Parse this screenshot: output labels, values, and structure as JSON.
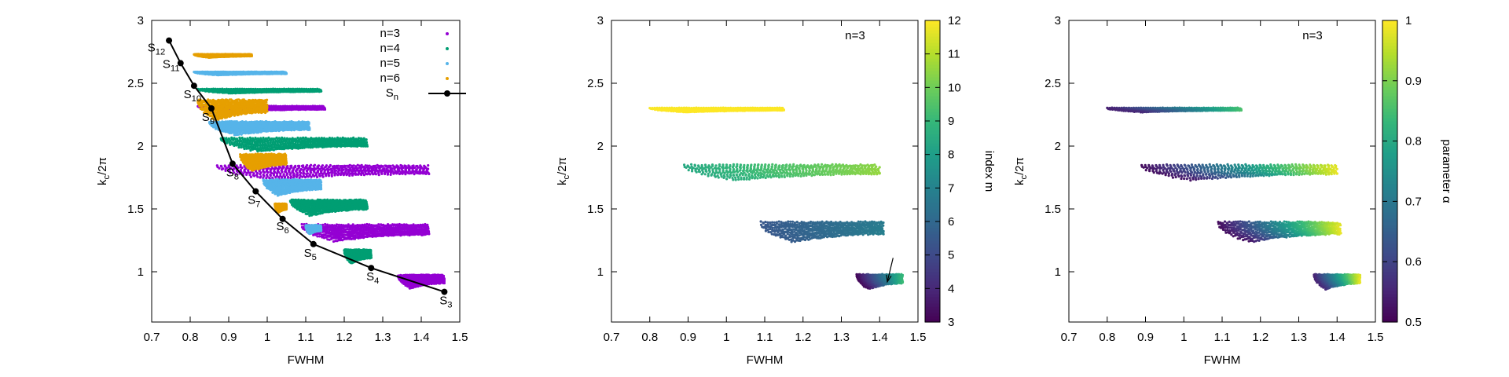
{
  "chart_data": [
    {
      "type": "scatter",
      "xlabel": "FWHM",
      "ylabel": "kc/2π",
      "xlim": [
        0.7,
        1.5
      ],
      "ylim": [
        0.6,
        3.0
      ],
      "xticks": [
        "0.7",
        "0.8",
        "0.9",
        "1",
        "1.1",
        "1.2",
        "1.3",
        "1.4",
        "1.5"
      ],
      "yticks": [
        "1",
        "1.5",
        "2",
        "2.5",
        "3"
      ],
      "legend_position": "top-right",
      "series": [
        {
          "name": "n=3",
          "color": "#9400d3",
          "bands": [
            {
              "k": 2.3,
              "x0": 0.82,
              "x1": 1.15,
              "w": 0.05
            },
            {
              "k": 1.8,
              "x0": 0.87,
              "x1": 1.42,
              "w": 0.13
            },
            {
              "k": 1.32,
              "x0": 1.09,
              "x1": 1.42,
              "w": 0.15
            },
            {
              "k": 0.93,
              "x0": 1.34,
              "x1": 1.46,
              "w": 0.12
            }
          ]
        },
        {
          "name": "n=4",
          "color": "#009e73",
          "bands": [
            {
              "k": 2.44,
              "x0": 0.82,
              "x1": 1.14,
              "w": 0.04
            },
            {
              "k": 2.02,
              "x0": 0.88,
              "x1": 1.26,
              "w": 0.12
            },
            {
              "k": 1.52,
              "x0": 1.06,
              "x1": 1.26,
              "w": 0.14
            },
            {
              "k": 1.13,
              "x0": 1.2,
              "x1": 1.27,
              "w": 0.12
            }
          ]
        },
        {
          "name": "n=5",
          "color": "#56b4e9",
          "bands": [
            {
              "k": 2.58,
              "x0": 0.81,
              "x1": 1.05,
              "w": 0.03
            },
            {
              "k": 2.15,
              "x0": 0.85,
              "x1": 1.11,
              "w": 0.12
            },
            {
              "k": 1.68,
              "x0": 0.99,
              "x1": 1.14,
              "w": 0.14
            },
            {
              "k": 1.34,
              "x0": 1.1,
              "x1": 1.14,
              "w": 0.08
            }
          ]
        },
        {
          "name": "n=6",
          "color": "#e69f00",
          "bands": [
            {
              "k": 2.72,
              "x0": 0.81,
              "x1": 0.96,
              "w": 0.03
            },
            {
              "k": 2.3,
              "x0": 0.82,
              "x1": 1.0,
              "w": 0.18
            },
            {
              "k": 1.88,
              "x0": 0.93,
              "x1": 1.05,
              "w": 0.15
            },
            {
              "k": 1.51,
              "x0": 1.02,
              "x1": 1.05,
              "w": 0.08
            }
          ]
        }
      ],
      "Sn": {
        "name": "Sn",
        "color": "#000000",
        "points": [
          {
            "x": 1.46,
            "y": 0.84,
            "label": "S3"
          },
          {
            "x": 1.27,
            "y": 1.03,
            "label": "S4"
          },
          {
            "x": 1.12,
            "y": 1.22,
            "label": "S5"
          },
          {
            "x": 1.04,
            "y": 1.42,
            "label": "S6"
          },
          {
            "x": 0.97,
            "y": 1.64,
            "label": "S7"
          },
          {
            "x": 0.91,
            "y": 1.86,
            "label": "S8"
          },
          {
            "x": 0.855,
            "y": 2.3,
            "label": "S9"
          },
          {
            "x": 0.81,
            "y": 2.48,
            "label": "S10"
          },
          {
            "x": 0.775,
            "y": 2.66,
            "label": "S11"
          },
          {
            "x": 0.745,
            "y": 2.84,
            "label": "S12"
          }
        ]
      }
    },
    {
      "type": "scatter",
      "annotation": "n=3",
      "xlabel": "FWHM",
      "ylabel": "kc/2π",
      "xlim": [
        0.7,
        1.5
      ],
      "ylim": [
        0.6,
        3.0
      ],
      "xticks": [
        "0.7",
        "0.8",
        "0.9",
        "1",
        "1.1",
        "1.2",
        "1.3",
        "1.4",
        "1.5"
      ],
      "yticks": [
        "1",
        "1.5",
        "2",
        "2.5",
        "3"
      ],
      "colorbar": {
        "label": "index m",
        "min": 3,
        "max": 12,
        "ticks": [
          "3",
          "4",
          "5",
          "6",
          "7",
          "8",
          "9",
          "10",
          "11",
          "12"
        ],
        "colormap": "viridis"
      },
      "bands": [
        {
          "k": 2.29,
          "x0": 0.8,
          "x1": 1.15,
          "w": 0.04,
          "c0": 12,
          "c1": 12
        },
        {
          "k": 1.8,
          "x0": 0.89,
          "x1": 1.4,
          "w": 0.14,
          "c0": 8.5,
          "c1": 10.5
        },
        {
          "k": 1.33,
          "x0": 1.09,
          "x1": 1.41,
          "w": 0.18,
          "c0": 5.5,
          "c1": 6.8
        },
        {
          "k": 0.93,
          "x0": 1.34,
          "x1": 1.46,
          "w": 0.13,
          "c0": 3.2,
          "c1": 9.0
        }
      ],
      "arrow": {
        "x0": 1.435,
        "y0": 1.11,
        "x1": 1.42,
        "y1": 0.92
      }
    },
    {
      "type": "scatter",
      "annotation": "n=3",
      "xlabel": "FWHM",
      "ylabel": "kc/2π",
      "xlim": [
        0.7,
        1.5
      ],
      "ylim": [
        0.6,
        3.0
      ],
      "xticks": [
        "0.7",
        "0.8",
        "0.9",
        "1",
        "1.1",
        "1.2",
        "1.3",
        "1.4",
        "1.5"
      ],
      "yticks": [
        "1",
        "1.5",
        "2",
        "2.5",
        "3"
      ],
      "colorbar": {
        "label": "parameter α",
        "min": 0.5,
        "max": 1.0,
        "ticks": [
          "0.5",
          "0.6",
          "0.7",
          "0.8",
          "0.9",
          "1"
        ],
        "colormap": "viridis"
      },
      "bands": [
        {
          "k": 2.29,
          "x0": 0.8,
          "x1": 1.15,
          "w": 0.04,
          "c0": 0.55,
          "c1": 0.85
        },
        {
          "k": 1.8,
          "x0": 0.89,
          "x1": 1.4,
          "w": 0.14,
          "c0": 0.52,
          "c1": 0.98
        },
        {
          "k": 1.33,
          "x0": 1.09,
          "x1": 1.41,
          "w": 0.18,
          "c0": 0.52,
          "c1": 0.98
        },
        {
          "k": 0.93,
          "x0": 1.34,
          "x1": 1.46,
          "w": 0.13,
          "c0": 0.55,
          "c1": 0.98
        }
      ]
    }
  ]
}
